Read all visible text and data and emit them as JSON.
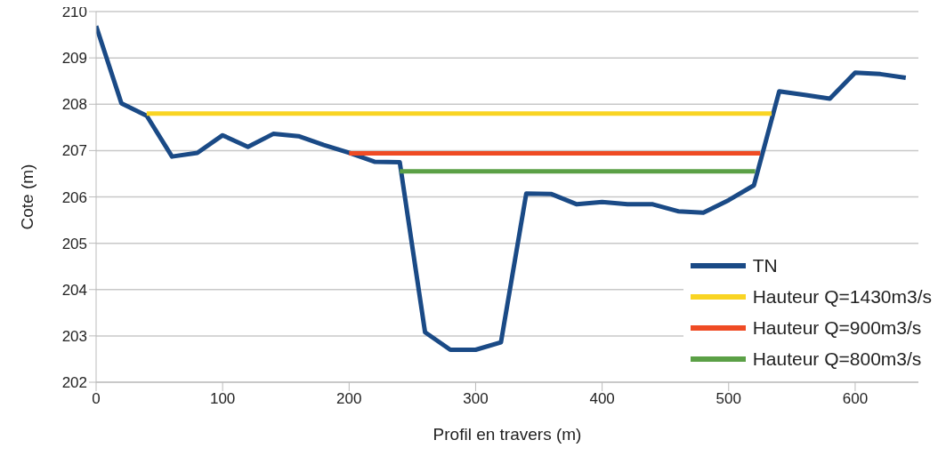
{
  "chart_data": {
    "type": "line",
    "xlabel": "Profil en travers (m)",
    "ylabel": "Cote (m)",
    "x": [
      0,
      20,
      40,
      60,
      80,
      100,
      120,
      140,
      160,
      180,
      200,
      220,
      240,
      260,
      280,
      300,
      320,
      340,
      360,
      380,
      400,
      420,
      440,
      460,
      480,
      500,
      520,
      540,
      560,
      580,
      600,
      620,
      640
    ],
    "series": [
      {
        "name": "TN",
        "color": "#1a4a86",
        "values": [
          209.69,
          208.02,
          207.75,
          206.87,
          206.95,
          207.33,
          207.08,
          207.36,
          207.31,
          207.12,
          206.95,
          206.76,
          206.75,
          203.08,
          202.7,
          202.7,
          202.86,
          206.07,
          206.06,
          205.84,
          205.89,
          205.84,
          205.84,
          205.69,
          205.66,
          205.93,
          206.25,
          208.28,
          208.2,
          208.12,
          208.68,
          208.65,
          208.57
        ]
      },
      {
        "name": "Hauteur Q=1430m3/s",
        "color": "#f9d423",
        "x": [
          40,
          534
        ],
        "values": [
          207.8,
          207.8
        ]
      },
      {
        "name": "Hauteur Q=900m3/s",
        "color": "#ef4b24",
        "x": [
          200,
          525
        ],
        "values": [
          206.94,
          206.94
        ]
      },
      {
        "name": "Hauteur Q=800m3/s",
        "color": "#5ba046",
        "x": [
          240,
          521
        ],
        "values": [
          206.55,
          206.55
        ]
      }
    ],
    "xlim": [
      0,
      650
    ],
    "xticks": [
      0,
      100,
      200,
      300,
      400,
      500,
      600
    ],
    "ylim": [
      202,
      210
    ],
    "yticks": [
      202,
      203,
      204,
      205,
      206,
      207,
      208,
      209,
      210
    ],
    "grid": "y",
    "legend": "bottom right",
    "marker": "none",
    "line_style": "solid"
  }
}
